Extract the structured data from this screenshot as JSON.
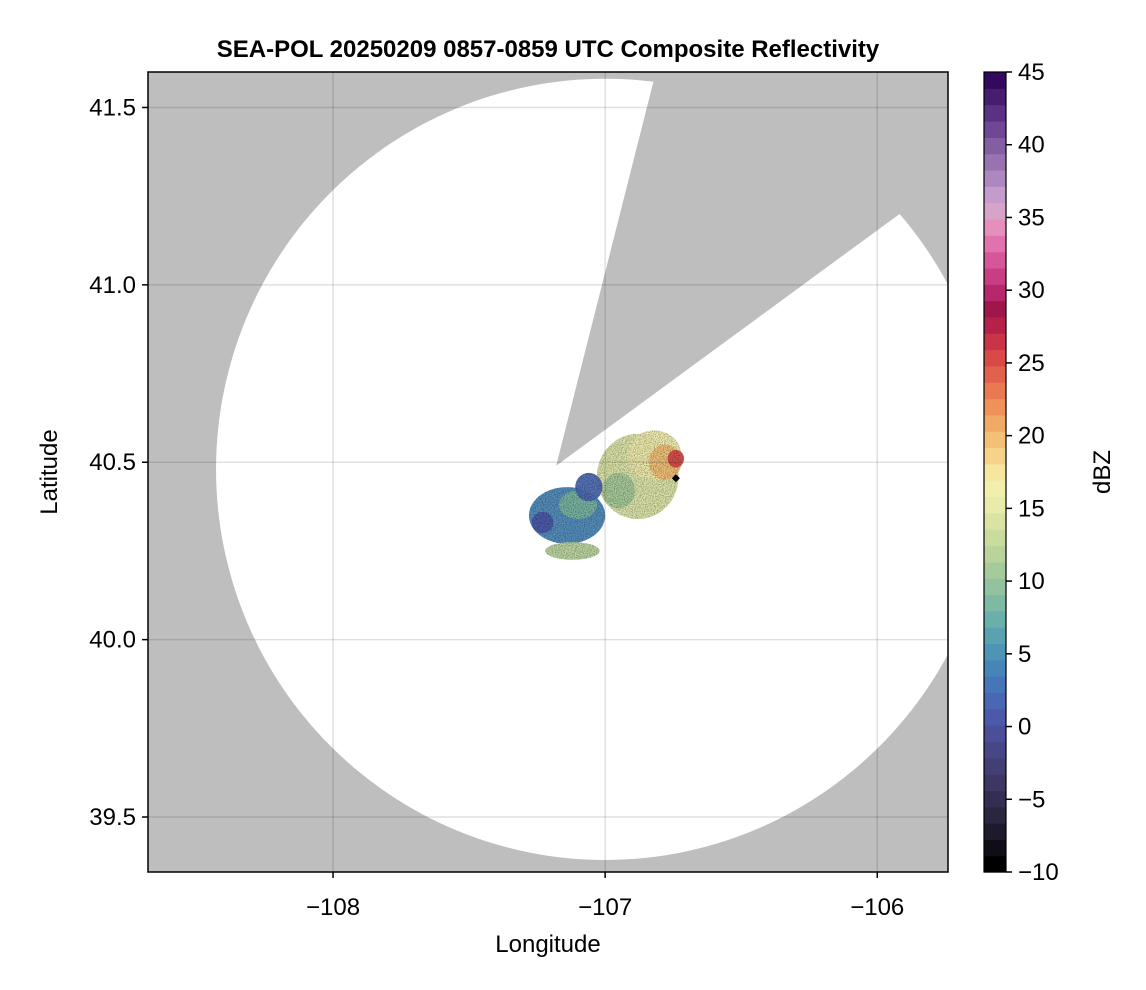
{
  "chart_data": {
    "type": "heatmap",
    "title": "SEA-POL 20250209 0857-0859 UTC Composite Reflectivity",
    "xlabel": "Longitude",
    "ylabel": "Latitude",
    "xlim": [
      -108.68,
      -105.74
    ],
    "ylim": [
      39.345,
      41.6
    ],
    "x_ticks": [
      -108,
      -107,
      -106
    ],
    "x_tick_labels": [
      "−108",
      "−107",
      "−106"
    ],
    "y_ticks": [
      39.5,
      40.0,
      40.5,
      41.0,
      41.5
    ],
    "y_tick_labels": [
      "39.5",
      "40.0",
      "40.5",
      "41.0",
      "41.5"
    ],
    "grid": true,
    "no_data_color": "#bebebe",
    "radar_site": {
      "lon": -107.0,
      "lat": 40.48
    },
    "coverage_radius_deg": 1.43,
    "coverage_outer_points": [
      [
        -108.15,
        41.25
      ],
      [
        -107.5,
        41.52
      ],
      [
        -106.84,
        41.52
      ],
      [
        -106.06,
        41.12
      ],
      [
        -105.85,
        40.5
      ],
      [
        -106.35,
        39.55
      ],
      [
        -107.0,
        39.375
      ]
    ],
    "blocked_sector": {
      "description": "no data wedge from radar site toward north-east",
      "apex": {
        "lon": -107.18,
        "lat": 40.49
      },
      "edge_points": [
        [
          -106.84,
          41.52
        ],
        [
          -106.06,
          41.12
        ]
      ]
    },
    "marker": {
      "lon": -106.74,
      "lat": 40.455,
      "symbol": "diamond",
      "color": "#000000"
    },
    "echo_cells": [
      {
        "lon": -106.88,
        "lat": 40.46,
        "rlon": 0.15,
        "rlat": 0.12,
        "value": 14
      },
      {
        "lon": -106.82,
        "lat": 40.52,
        "rlon": 0.1,
        "rlat": 0.07,
        "value": 16
      },
      {
        "lon": -106.78,
        "lat": 40.5,
        "rlon": 0.06,
        "rlat": 0.05,
        "value": 20
      },
      {
        "lon": -106.74,
        "lat": 40.51,
        "rlon": 0.03,
        "rlat": 0.025,
        "value": 25
      },
      {
        "lon": -106.95,
        "lat": 40.42,
        "rlon": 0.06,
        "rlat": 0.05,
        "value": 11
      },
      {
        "lon": -107.14,
        "lat": 40.35,
        "rlon": 0.14,
        "rlat": 0.08,
        "value": 4
      },
      {
        "lon": -107.1,
        "lat": 40.38,
        "rlon": 0.07,
        "rlat": 0.04,
        "value": 8
      },
      {
        "lon": -107.06,
        "lat": 40.43,
        "rlon": 0.05,
        "rlat": 0.04,
        "value": 2
      },
      {
        "lon": -107.12,
        "lat": 40.25,
        "rlon": 0.1,
        "rlat": 0.025,
        "value": 12
      },
      {
        "lon": -107.23,
        "lat": 40.33,
        "rlon": 0.04,
        "rlat": 0.03,
        "value": 1
      }
    ],
    "colorbar": {
      "label": "dBZ",
      "range": [
        -10,
        45
      ],
      "ticks": [
        -10,
        -5,
        0,
        5,
        10,
        15,
        20,
        25,
        30,
        35,
        40,
        45
      ],
      "tick_labels": [
        "−10",
        "−5",
        "0",
        "5",
        "10",
        "15",
        "20",
        "25",
        "30",
        "35",
        "40",
        "45"
      ],
      "colors": [
        "#000000",
        "#100d16",
        "#1e1a2c",
        "#2a2640",
        "#342f52",
        "#3c3863",
        "#423f75",
        "#474687",
        "#4b4e99",
        "#4c59aa",
        "#4a67b3",
        "#4676b8",
        "#4785b8",
        "#4e94b4",
        "#5aa2af",
        "#6aafaa",
        "#7db9a3",
        "#92c29e",
        "#a6cb9b",
        "#b9d39b",
        "#cadb9e",
        "#dae3a3",
        "#e8ebaa",
        "#f2eeae",
        "#f6e6a0",
        "#f5d48a",
        "#f3c076",
        "#f1aa66",
        "#ee925a",
        "#e97952",
        "#e2614c",
        "#d84948",
        "#cb3447",
        "#b52148",
        "#a0154c",
        "#b8276c",
        "#c83d84",
        "#d6569a",
        "#e272ae",
        "#e58fbd",
        "#d8a3c9",
        "#c49ccb",
        "#ad88bf",
        "#9872b1",
        "#845ea3",
        "#6f4794",
        "#5b3183",
        "#471d70",
        "#34085f"
      ]
    }
  }
}
